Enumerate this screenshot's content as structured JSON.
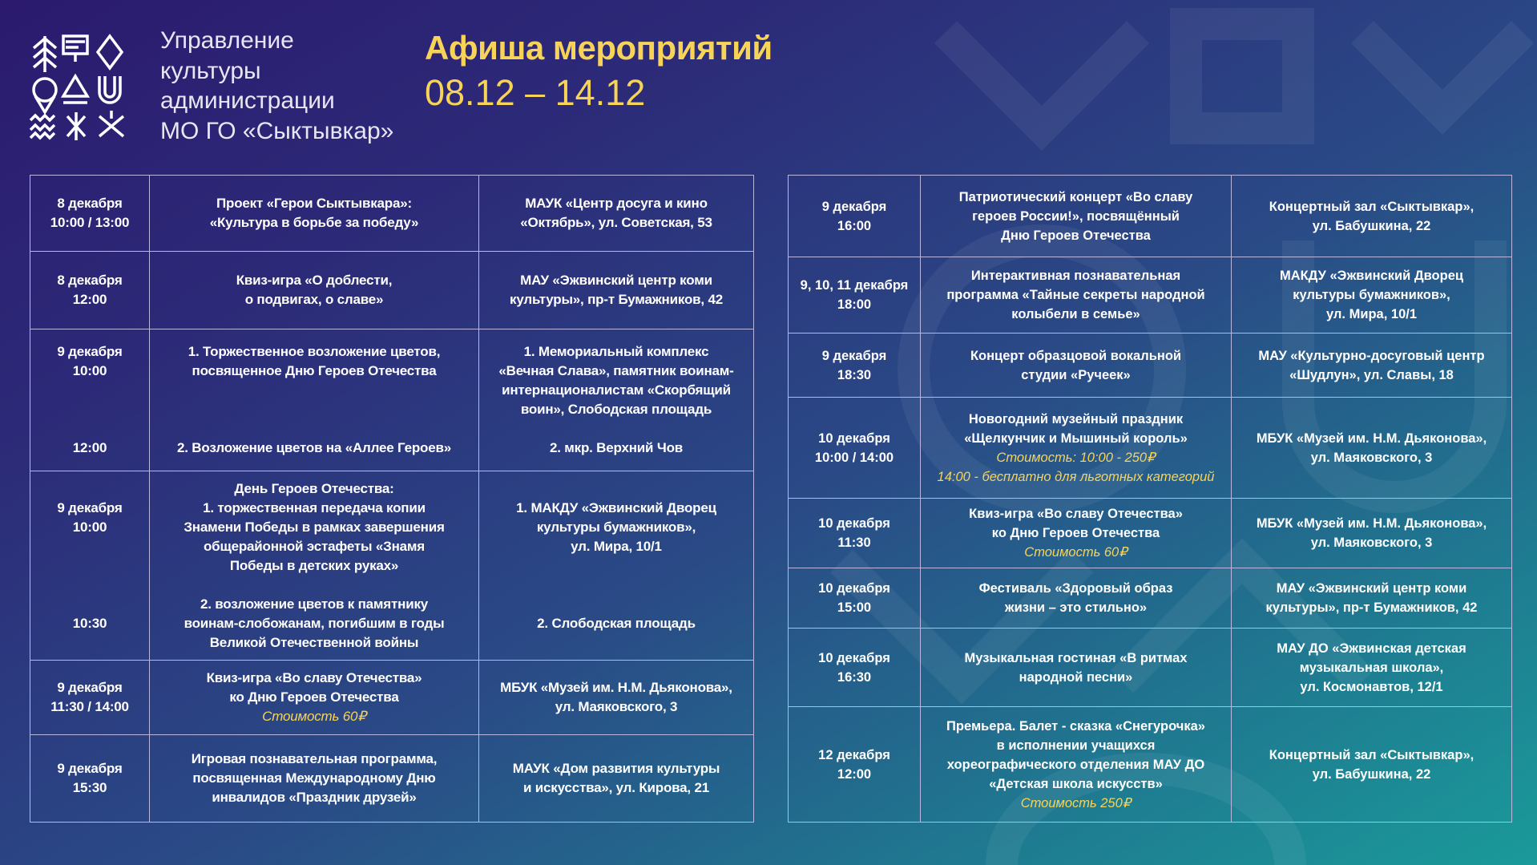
{
  "header": {
    "org_lines": [
      "Управление",
      "культуры",
      "администрации",
      "МО ГО «Сыктывкар»"
    ],
    "title": "Афиша мероприятий",
    "dates": "08.12 – 14.12"
  },
  "colors": {
    "accent": "#f7d457",
    "border": "#b9b6e0"
  },
  "left_table": [
    {
      "cells": [
        {
          "lines": [
            "8 декабря",
            "10:00 / 13:00"
          ]
        },
        {
          "lines": [
            "Проект «Герои Сыктывкара»:",
            "«Культура в борьбе за победу»"
          ]
        },
        {
          "lines": [
            "МАУК «Центр досуга и кино",
            "«Октябрь», ул. Советская, 53"
          ]
        }
      ]
    },
    {
      "cells": [
        {
          "lines": [
            "8 декабря",
            "12:00"
          ]
        },
        {
          "lines": [
            "Квиз-игра «О доблести,",
            "о подвигах, о славе»"
          ]
        },
        {
          "lines": [
            "МАУ «Эжвинский центр коми",
            "культуры», пр-т Бумажников, 42"
          ]
        }
      ]
    },
    {
      "cells": [
        {
          "lines": [
            "9 декабря",
            "10:00",
            "",
            "",
            "",
            "12:00"
          ]
        },
        {
          "lines": [
            "1. Торжественное возложение цветов,",
            "посвященное Дню Героев Отечества",
            "",
            "",
            "",
            "2. Возложение цветов на «Аллее Героев»"
          ]
        },
        {
          "lines": [
            "1. Мемориальный комплекс",
            "«Вечная Слава», памятник воинам-",
            "интернационалистам «Скорбящий",
            "воин», Слободская площадь",
            "",
            "2. мкр. Верхний Чов"
          ]
        }
      ]
    },
    {
      "cells": [
        {
          "lines": [
            "",
            "9 декабря",
            "10:00",
            "",
            "",
            "",
            "",
            "10:30",
            ""
          ]
        },
        {
          "lines": [
            "День Героев Отечества:",
            "1. торжественная передача копии",
            "Знамени Победы в рамках завершения",
            "общерайонной эстафеты «Знамя",
            "Победы в детских руках»",
            "",
            "2. возложение цветов к памятнику",
            "воинам-слобожанам, погибшим в годы",
            "Великой Отечественной войны"
          ]
        },
        {
          "lines": [
            "",
            "1. МАКДУ «Эжвинский Дворец",
            "культуры бумажников»,",
            "ул. Мира, 10/1",
            "",
            "",
            "",
            "2. Слободская площадь",
            ""
          ]
        }
      ]
    },
    {
      "cells": [
        {
          "lines": [
            "9 декабря",
            "11:30 / 14:00"
          ]
        },
        {
          "lines": [
            "Квиз-игра «Во славу Отечества»",
            "ко Дню Героев Отечества"
          ],
          "notes": [
            "Стоимость 60₽"
          ]
        },
        {
          "lines": [
            "МБУК «Музей им. Н.М. Дьяконова»,",
            "ул. Маяковского, 3"
          ]
        }
      ]
    },
    {
      "cells": [
        {
          "lines": [
            "9 декабря",
            "15:30"
          ]
        },
        {
          "lines": [
            "Игровая познавательная программа,",
            "посвященная Международному Дню",
            "инвалидов «Праздник друзей»"
          ]
        },
        {
          "lines": [
            "МАУК «Дом развития культуры",
            "и искусства», ул. Кирова, 21"
          ]
        }
      ]
    }
  ],
  "right_table": [
    {
      "cells": [
        {
          "lines": [
            "9 декабря",
            "16:00"
          ]
        },
        {
          "lines": [
            "Патриотический концерт «Во славу",
            "героев России!», посвящённый",
            "Дню Героев Отечества"
          ]
        },
        {
          "lines": [
            "Концертный зал «Сыктывкар»,",
            "ул. Бабушкина, 22"
          ]
        }
      ]
    },
    {
      "cells": [
        {
          "lines": [
            "9, 10, 11 декабря",
            "18:00"
          ]
        },
        {
          "lines": [
            "Интерактивная познавательная",
            "программа «Тайные секреты народной",
            "колыбели в семье»"
          ]
        },
        {
          "lines": [
            "МАКДУ «Эжвинский Дворец",
            "культуры бумажников»,",
            "ул. Мира, 10/1"
          ]
        }
      ]
    },
    {
      "cells": [
        {
          "lines": [
            "9 декабря",
            "18:30"
          ]
        },
        {
          "lines": [
            "Концерт образцовой вокальной",
            "студии «Ручеек»"
          ]
        },
        {
          "lines": [
            "МАУ «Культурно-досуговый центр",
            "«Шудлун», ул. Славы, 18"
          ]
        }
      ]
    },
    {
      "cells": [
        {
          "lines": [
            "10 декабря",
            "10:00 / 14:00"
          ]
        },
        {
          "lines": [
            "Новогодний музейный праздник",
            "«Щелкунчик и Мышиный король»"
          ],
          "notes": [
            "Стоимость: 10:00 - 250₽",
            "14:00 - бесплатно для льготных категорий"
          ]
        },
        {
          "lines": [
            "МБУК «Музей им. Н.М. Дьяконова»,",
            "ул. Маяковского, 3"
          ]
        }
      ]
    },
    {
      "cells": [
        {
          "lines": [
            "10 декабря",
            "11:30"
          ]
        },
        {
          "lines": [
            "Квиз-игра «Во славу Отечества»",
            "ко Дню Героев Отечества"
          ],
          "notes": [
            "Стоимость 60₽"
          ]
        },
        {
          "lines": [
            "МБУК «Музей им. Н.М. Дьяконова»,",
            "ул. Маяковского, 3"
          ]
        }
      ]
    },
    {
      "cells": [
        {
          "lines": [
            "10 декабря",
            "15:00"
          ]
        },
        {
          "lines": [
            "Фестиваль «Здоровый образ",
            "жизни – это стильно»"
          ]
        },
        {
          "lines": [
            "МАУ «Эжвинский центр коми",
            "культуры», пр-т Бумажников, 42"
          ]
        }
      ]
    },
    {
      "cells": [
        {
          "lines": [
            "10 декабря",
            "16:30"
          ]
        },
        {
          "lines": [
            "Музыкальная гостиная «В ритмах",
            "народной песни»"
          ]
        },
        {
          "lines": [
            "МАУ ДО «Эжвинская детская",
            "музыкальная школа»,",
            "ул. Космонавтов, 12/1"
          ]
        }
      ]
    },
    {
      "cells": [
        {
          "lines": [
            "12 декабря",
            "12:00"
          ]
        },
        {
          "lines": [
            "Премьера. Балет - сказка «Снегурочка»",
            "в исполнении учащихся",
            "хореографического отделения МАУ ДО",
            "«Детская школа искусств»"
          ],
          "notes": [
            "Стоимость 250₽"
          ]
        },
        {
          "lines": [
            "Концертный зал «Сыктывкар»,",
            "ул. Бабушкина, 22"
          ]
        }
      ]
    }
  ]
}
